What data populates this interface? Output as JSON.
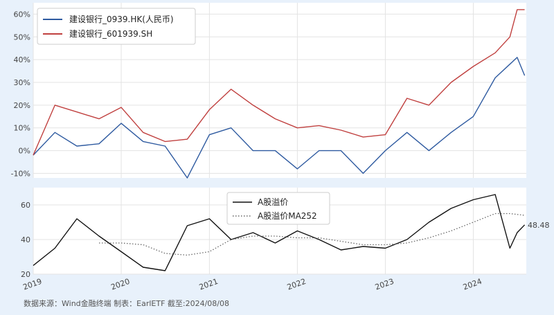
{
  "footer_text": "数据来源：Wind金融终端 制表：EarlETF 截至:2024/08/08",
  "chart_data": [
    {
      "type": "line",
      "x_range": [
        "2019-01-01",
        "2024-08-08"
      ],
      "ylim": [
        -12,
        65
      ],
      "y_ticks": [
        -10,
        0,
        10,
        20,
        30,
        40,
        50,
        60
      ],
      "y_tick_labels": [
        "-10%",
        "0%",
        "10%",
        "20%",
        "30%",
        "40%",
        "50%",
        "60%"
      ],
      "y_unit": "%",
      "grid": true,
      "legend_position": "top-left",
      "series": [
        {
          "name": "建设银行_0939.HK(人民币)",
          "color": "#2e5aa0",
          "x": [
            "2019-01",
            "2019-04",
            "2019-07",
            "2019-10",
            "2020-01",
            "2020-04",
            "2020-07",
            "2020-10",
            "2021-01",
            "2021-04",
            "2021-07",
            "2021-10",
            "2022-01",
            "2022-04",
            "2022-07",
            "2022-10",
            "2023-01",
            "2023-04",
            "2023-07",
            "2023-10",
            "2024-01",
            "2024-04",
            "2024-06",
            "2024-07",
            "2024-08"
          ],
          "values": [
            -2,
            8,
            2,
            3,
            12,
            4,
            2,
            -12,
            7,
            10,
            0,
            0,
            -8,
            0,
            0,
            -10,
            0,
            8,
            0,
            8,
            15,
            32,
            38,
            41,
            33
          ]
        },
        {
          "name": "建设银行_601939.SH",
          "color": "#c0403f",
          "x": [
            "2019-01",
            "2019-04",
            "2019-07",
            "2019-10",
            "2020-01",
            "2020-04",
            "2020-07",
            "2020-10",
            "2021-01",
            "2021-04",
            "2021-07",
            "2021-10",
            "2022-01",
            "2022-04",
            "2022-07",
            "2022-10",
            "2023-01",
            "2023-04",
            "2023-07",
            "2023-10",
            "2024-01",
            "2024-04",
            "2024-06",
            "2024-07",
            "2024-08"
          ],
          "values": [
            -2,
            20,
            17,
            14,
            19,
            8,
            4,
            5,
            18,
            27,
            20,
            14,
            10,
            11,
            9,
            6,
            7,
            23,
            20,
            30,
            37,
            43,
            50,
            62,
            62
          ]
        }
      ]
    },
    {
      "type": "line",
      "x_range": [
        "2019-01-01",
        "2024-08-08"
      ],
      "ylim": [
        20,
        70
      ],
      "y_ticks": [
        20,
        40,
        60
      ],
      "y_tick_labels": [
        "20",
        "40",
        "60"
      ],
      "grid": true,
      "legend_position": "top-center",
      "x_tick_labels": [
        "2019",
        "2020",
        "2021",
        "2022",
        "2023",
        "2024"
      ],
      "last_value_label": "48.48",
      "series": [
        {
          "name": "A股溢价",
          "color": "#111111",
          "style": "solid",
          "x": [
            "2019-01",
            "2019-04",
            "2019-07",
            "2019-10",
            "2020-01",
            "2020-04",
            "2020-07",
            "2020-10",
            "2021-01",
            "2021-04",
            "2021-07",
            "2021-10",
            "2022-01",
            "2022-04",
            "2022-07",
            "2022-10",
            "2023-01",
            "2023-04",
            "2023-07",
            "2023-10",
            "2024-01",
            "2024-04",
            "2024-06",
            "2024-07",
            "2024-08"
          ],
          "values": [
            25,
            35,
            52,
            42,
            33,
            24,
            22,
            48,
            52,
            40,
            44,
            38,
            45,
            40,
            34,
            36,
            35,
            40,
            50,
            58,
            63,
            66,
            35,
            44,
            48.48
          ]
        },
        {
          "name": "A股溢价MA252",
          "color": "#666666",
          "style": "dotted",
          "x": [
            "2019-10",
            "2020-01",
            "2020-04",
            "2020-07",
            "2020-10",
            "2021-01",
            "2021-04",
            "2021-07",
            "2021-10",
            "2022-01",
            "2022-04",
            "2022-07",
            "2022-10",
            "2023-01",
            "2023-04",
            "2023-07",
            "2023-10",
            "2024-01",
            "2024-04",
            "2024-06",
            "2024-08"
          ],
          "values": [
            38,
            38,
            37,
            32,
            31,
            33,
            40,
            42,
            42,
            41,
            41,
            39,
            37,
            37,
            38,
            41,
            45,
            50,
            55,
            55,
            54
          ]
        }
      ]
    }
  ]
}
